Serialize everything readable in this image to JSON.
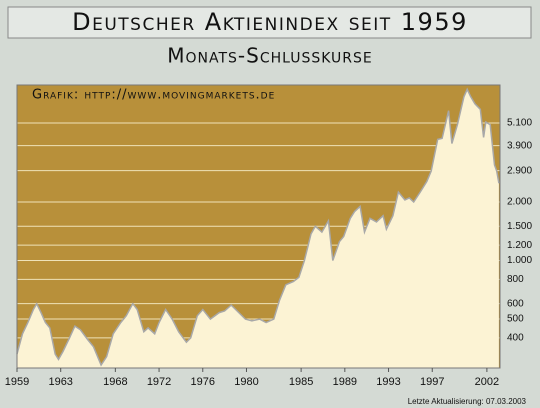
{
  "chart_data": {
    "type": "area",
    "title": "Deutscher Aktienindex seit 1959",
    "subtitle": "Monats-Schlusskurse",
    "annotation": "Grafik: http://www.movingmarkets.de",
    "footer": "Letzte Aktualisierung: 07.03.2003",
    "log_scale": true,
    "grid": true,
    "fill_color": "#fcf3d4",
    "background_color": "#b8903a",
    "line_color": "#a8a8a8",
    "xlim": [
      1959,
      2003.2
    ],
    "xticks": [
      1959,
      1963,
      1968,
      1972,
      1976,
      1980,
      1985,
      1989,
      1993,
      1997,
      2002
    ],
    "ylim": [
      280,
      8000
    ],
    "yticks": [
      {
        "value": 5100,
        "label": "5.100"
      },
      {
        "value": 3900,
        "label": "3.900"
      },
      {
        "value": 2900,
        "label": "2.900"
      },
      {
        "value": 2000,
        "label": "2.000"
      },
      {
        "value": 1500,
        "label": "1.500"
      },
      {
        "value": 1200,
        "label": "1.200"
      },
      {
        "value": 1000,
        "label": "1.000"
      },
      800,
      600,
      500,
      400
    ],
    "x": [
      1959.0,
      1959.5,
      1960.0,
      1960.5,
      1960.8,
      1961.2,
      1961.6,
      1962.0,
      1962.5,
      1962.8,
      1963.2,
      1963.8,
      1964.3,
      1964.8,
      1965.5,
      1966.0,
      1966.7,
      1967.2,
      1967.8,
      1968.5,
      1969.0,
      1969.6,
      1970.0,
      1970.6,
      1971.0,
      1971.6,
      1972.0,
      1972.6,
      1973.2,
      1973.8,
      1974.5,
      1974.9,
      1975.5,
      1976.0,
      1976.7,
      1977.5,
      1978.0,
      1978.6,
      1979.3,
      1979.9,
      1980.5,
      1981.2,
      1981.8,
      1982.5,
      1983.0,
      1983.6,
      1984.3,
      1984.8,
      1985.3,
      1985.9,
      1986.3,
      1986.9,
      1987.5,
      1987.9,
      1988.5,
      1988.9,
      1989.5,
      1989.9,
      1990.4,
      1990.8,
      1991.3,
      1991.9,
      1992.5,
      1992.8,
      1993.4,
      1993.9,
      1994.5,
      1994.9,
      1995.3,
      1995.9,
      1996.5,
      1996.9,
      1997.5,
      1997.9,
      1998.5,
      1998.8,
      1999.3,
      1999.9,
      2000.2,
      2000.5,
      2000.9,
      2001.4,
      2001.7,
      2001.9,
      2002.3,
      2002.7,
      2002.9,
      2003.1
    ],
    "values": [
      330,
      420,
      480,
      560,
      600,
      540,
      480,
      450,
      330,
      310,
      340,
      400,
      460,
      440,
      390,
      360,
      290,
      320,
      420,
      480,
      520,
      600,
      560,
      430,
      450,
      420,
      480,
      560,
      500,
      430,
      380,
      400,
      520,
      560,
      500,
      540,
      550,
      590,
      540,
      500,
      490,
      500,
      480,
      500,
      620,
      750,
      780,
      820,
      1000,
      1370,
      1500,
      1400,
      1600,
      1000,
      1250,
      1330,
      1650,
      1790,
      1900,
      1400,
      1650,
      1580,
      1700,
      1450,
      1700,
      2250,
      2050,
      2100,
      2000,
      2250,
      2550,
      2890,
      4200,
      4250,
      5900,
      4000,
      5000,
      6960,
      7600,
      7000,
      6400,
      6000,
      4300,
      5160,
      5000,
      3100,
      2890,
      2500
    ]
  }
}
